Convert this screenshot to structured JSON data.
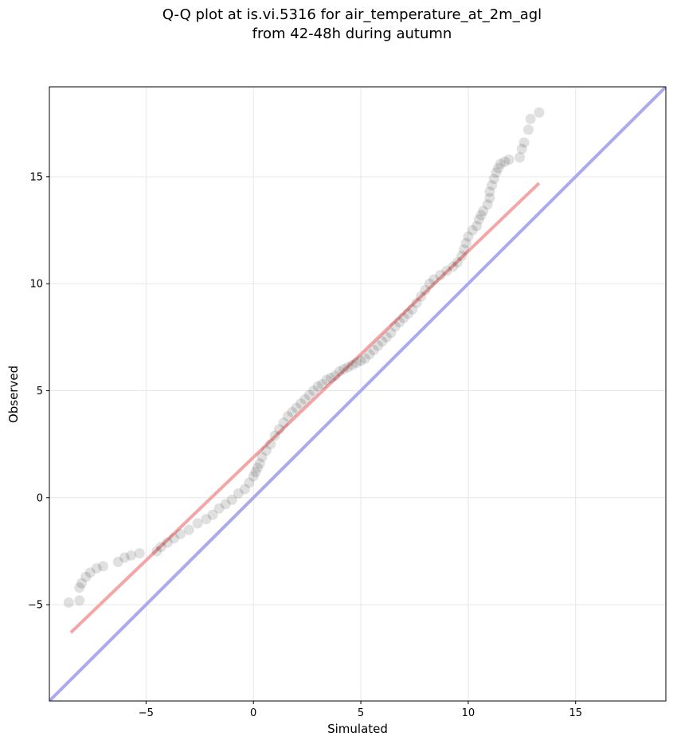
{
  "chart_data": {
    "type": "scatter",
    "title_line1": "Q-Q plot at is.vi.5316 for air_temperature_at_2m_agl",
    "title_line2": "from 42-48h during autumn",
    "xlabel": "Simulated",
    "ylabel": "Observed",
    "xlim": [
      -9.5,
      19.2
    ],
    "ylim": [
      -9.5,
      19.2
    ],
    "xticks": [
      -5,
      0,
      5,
      10,
      15
    ],
    "yticks": [
      -5,
      0,
      5,
      10,
      15
    ],
    "xtick_labels": [
      "−5",
      "0",
      "5",
      "10",
      "15"
    ],
    "ytick_labels": [
      "−5",
      "0",
      "5",
      "10",
      "15"
    ],
    "grid": true,
    "identity_line": {
      "color": "#aaaaee",
      "from": [
        -9.5,
        -9.5
      ],
      "to": [
        19.2,
        19.2
      ]
    },
    "fit_line": {
      "color": "#f4a6a6",
      "from": [
        -8.5,
        -6.3
      ],
      "to": [
        13.3,
        14.7
      ]
    },
    "point_color": "#000000",
    "points": [
      [
        13.3,
        18.0
      ],
      [
        12.9,
        17.7
      ],
      [
        12.8,
        17.2
      ],
      [
        12.6,
        16.6
      ],
      [
        12.5,
        16.3
      ],
      [
        12.4,
        15.9
      ],
      [
        11.9,
        15.8
      ],
      [
        11.7,
        15.7
      ],
      [
        11.5,
        15.6
      ],
      [
        11.4,
        15.4
      ],
      [
        11.3,
        15.2
      ],
      [
        11.2,
        14.9
      ],
      [
        11.1,
        14.6
      ],
      [
        11.0,
        14.3
      ],
      [
        11.0,
        14.0
      ],
      [
        10.9,
        13.7
      ],
      [
        10.7,
        13.4
      ],
      [
        10.6,
        13.2
      ],
      [
        10.5,
        13.0
      ],
      [
        10.4,
        12.7
      ],
      [
        10.2,
        12.5
      ],
      [
        10.0,
        12.2
      ],
      [
        9.9,
        11.9
      ],
      [
        9.8,
        11.6
      ],
      [
        9.7,
        11.3
      ],
      [
        9.5,
        11.0
      ],
      [
        9.3,
        10.8
      ],
      [
        9.0,
        10.6
      ],
      [
        8.7,
        10.4
      ],
      [
        8.4,
        10.2
      ],
      [
        8.2,
        10.0
      ],
      [
        8.0,
        9.7
      ],
      [
        7.8,
        9.4
      ],
      [
        7.6,
        9.1
      ],
      [
        7.4,
        8.8
      ],
      [
        7.2,
        8.6
      ],
      [
        7.0,
        8.4
      ],
      [
        6.8,
        8.2
      ],
      [
        6.6,
        8.0
      ],
      [
        6.4,
        7.7
      ],
      [
        6.2,
        7.5
      ],
      [
        6.0,
        7.3
      ],
      [
        5.8,
        7.1
      ],
      [
        5.6,
        6.9
      ],
      [
        5.4,
        6.7
      ],
      [
        5.2,
        6.5
      ],
      [
        5.0,
        6.4
      ],
      [
        4.8,
        6.3
      ],
      [
        4.6,
        6.2
      ],
      [
        4.4,
        6.1
      ],
      [
        4.2,
        6.0
      ],
      [
        4.0,
        5.9
      ],
      [
        3.8,
        5.7
      ],
      [
        3.6,
        5.6
      ],
      [
        3.4,
        5.5
      ],
      [
        3.2,
        5.3
      ],
      [
        3.0,
        5.2
      ],
      [
        2.8,
        5.0
      ],
      [
        2.6,
        4.8
      ],
      [
        2.4,
        4.6
      ],
      [
        2.2,
        4.4
      ],
      [
        2.0,
        4.2
      ],
      [
        1.8,
        4.0
      ],
      [
        1.6,
        3.8
      ],
      [
        1.4,
        3.5
      ],
      [
        1.2,
        3.2
      ],
      [
        1.0,
        2.9
      ],
      [
        0.8,
        2.5
      ],
      [
        0.6,
        2.2
      ],
      [
        0.4,
        1.9
      ],
      [
        0.3,
        1.6
      ],
      [
        0.2,
        1.4
      ],
      [
        0.1,
        1.2
      ],
      [
        0.0,
        1.0
      ],
      [
        -0.2,
        0.7
      ],
      [
        -0.4,
        0.4
      ],
      [
        -0.7,
        0.2
      ],
      [
        -1.0,
        -0.1
      ],
      [
        -1.3,
        -0.3
      ],
      [
        -1.6,
        -0.5
      ],
      [
        -1.9,
        -0.8
      ],
      [
        -2.2,
        -1.0
      ],
      [
        -2.6,
        -1.2
      ],
      [
        -3.0,
        -1.5
      ],
      [
        -3.4,
        -1.7
      ],
      [
        -3.7,
        -1.9
      ],
      [
        -4.0,
        -2.1
      ],
      [
        -4.3,
        -2.3
      ],
      [
        -4.5,
        -2.5
      ],
      [
        -5.3,
        -2.6
      ],
      [
        -5.7,
        -2.7
      ],
      [
        -6.0,
        -2.8
      ],
      [
        -6.3,
        -3.0
      ],
      [
        -7.0,
        -3.2
      ],
      [
        -7.3,
        -3.3
      ],
      [
        -7.6,
        -3.5
      ],
      [
        -7.8,
        -3.7
      ],
      [
        -8.0,
        -4.0
      ],
      [
        -8.1,
        -4.2
      ],
      [
        -8.1,
        -4.8
      ],
      [
        -8.6,
        -4.9
      ]
    ]
  }
}
